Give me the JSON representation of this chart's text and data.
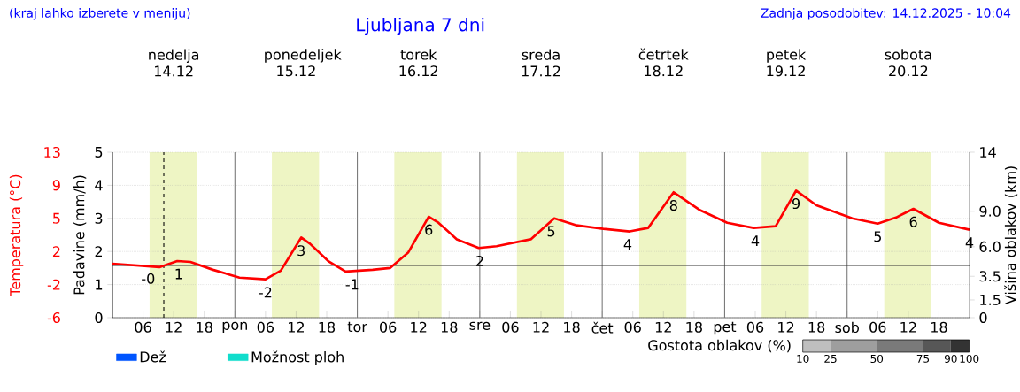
{
  "chart_data": {
    "type": "line",
    "title": "Ljubljana 7 dni",
    "annotations": [
      "(kraj lahko izberete v meniju)",
      "Zadnja posodobitev: 14.12.2025 - 10:04",
      "nedelja 14.12",
      "ponedeljek 15.12",
      "torek 16.12",
      "sreda 17.12",
      "četrtek 18.12",
      "petek 19.12",
      "sobota 20.12",
      {
        "text": "-0",
        "x": "2025-12-14T07:00",
        "y": 0.0
      },
      {
        "text": "1",
        "x": "2025-12-14T13:00",
        "y": 0.5
      },
      {
        "text": "-2",
        "x": "2025-12-15T06:00",
        "y": -1.6
      },
      {
        "text": "3",
        "x": "2025-12-15T13:00",
        "y": 3.2
      },
      {
        "text": "-1",
        "x": "2025-12-15T23:00",
        "y": -0.7
      },
      {
        "text": "6",
        "x": "2025-12-16T14:00",
        "y": 5.6
      },
      {
        "text": "2",
        "x": "2025-12-17T00:00",
        "y": 2.0
      },
      {
        "text": "5",
        "x": "2025-12-17T14:00",
        "y": 5.4
      },
      {
        "text": "4",
        "x": "2025-12-18T05:00",
        "y": 3.9
      },
      {
        "text": "8",
        "x": "2025-12-18T14:00",
        "y": 8.4
      },
      {
        "text": "4",
        "x": "2025-12-19T06:00",
        "y": 4.3
      },
      {
        "text": "9",
        "x": "2025-12-19T14:00",
        "y": 8.6
      },
      {
        "text": "5",
        "x": "2025-12-20T06:00",
        "y": 4.8
      },
      {
        "text": "6",
        "x": "2025-12-20T13:00",
        "y": 6.5
      },
      {
        "text": "4",
        "x": "2025-12-21T00:00",
        "y": 4.1
      }
    ],
    "ylabel": "Temperatura (°C)",
    "y2label": "Padavine (mm/h)",
    "y3label": "Višina oblakov (km)",
    "xlim": [
      "2025-12-14T00:00",
      "2025-12-21T00:00"
    ],
    "xticks": [
      {
        "value": "2025-12-14T06:00",
        "label": "06"
      },
      {
        "value": "2025-12-14T12:00",
        "label": "12"
      },
      {
        "value": "2025-12-14T18:00",
        "label": "18"
      },
      {
        "value": "2025-12-15T00:00",
        "label": "pon"
      },
      {
        "value": "2025-12-15T06:00",
        "label": "06"
      },
      {
        "value": "2025-12-15T12:00",
        "label": "12"
      },
      {
        "value": "2025-12-15T18:00",
        "label": "18"
      },
      {
        "value": "2025-12-16T00:00",
        "label": "tor"
      },
      {
        "value": "2025-12-16T06:00",
        "label": "06"
      },
      {
        "value": "2025-12-16T12:00",
        "label": "12"
      },
      {
        "value": "2025-12-16T18:00",
        "label": "18"
      },
      {
        "value": "2025-12-17T00:00",
        "label": "sre"
      },
      {
        "value": "2025-12-17T06:00",
        "label": "06"
      },
      {
        "value": "2025-12-17T12:00",
        "label": "12"
      },
      {
        "value": "2025-12-17T18:00",
        "label": "18"
      },
      {
        "value": "2025-12-18T00:00",
        "label": "čet"
      },
      {
        "value": "2025-12-18T06:00",
        "label": "06"
      },
      {
        "value": "2025-12-18T12:00",
        "label": "12"
      },
      {
        "value": "2025-12-18T18:00",
        "label": "18"
      },
      {
        "value": "2025-12-19T00:00",
        "label": "pet"
      },
      {
        "value": "2025-12-19T06:00",
        "label": "06"
      },
      {
        "value": "2025-12-19T12:00",
        "label": "12"
      },
      {
        "value": "2025-12-19T18:00",
        "label": "18"
      },
      {
        "value": "2025-12-20T00:00",
        "label": "sob"
      },
      {
        "value": "2025-12-20T06:00",
        "label": "06"
      },
      {
        "value": "2025-12-20T12:00",
        "label": "12"
      },
      {
        "value": "2025-12-20T18:00",
        "label": "18"
      }
    ],
    "ylim": [
      -6,
      13
    ],
    "yticks": [
      {
        "value": -6,
        "label": "-6"
      },
      {
        "value": -2.2,
        "label": "-2"
      },
      {
        "value": 1.6,
        "label": "2"
      },
      {
        "value": 5.4,
        "label": "5"
      },
      {
        "value": 9.2,
        "label": "9"
      },
      {
        "value": 13,
        "label": "13"
      }
    ],
    "y2lim": [
      0,
      5
    ],
    "y2ticks": [
      0,
      1,
      2,
      3,
      4,
      5
    ],
    "y3lim": [
      0,
      14
    ],
    "y3ticks": [
      0,
      1.5,
      3.5,
      {
        "value": 6,
        "label": "6.0"
      },
      {
        "value": 9,
        "label": "9.0"
      },
      14
    ],
    "grid": "y",
    "legend": "bottom",
    "clabel": "Gostota oblakov (%)",
    "clim": [
      10,
      100
    ],
    "cticks": [
      10,
      25,
      50,
      75,
      90,
      100
    ],
    "bands": [
      {
        "axis": "x",
        "from": "2025-12-14T07:15",
        "to": "2025-12-14T16:30",
        "color": "#eef5c4"
      },
      {
        "axis": "x",
        "from": "2025-12-15T07:15",
        "to": "2025-12-15T16:30",
        "color": "#eef5c4"
      },
      {
        "axis": "x",
        "from": "2025-12-16T07:15",
        "to": "2025-12-16T16:30",
        "color": "#eef5c4"
      },
      {
        "axis": "x",
        "from": "2025-12-17T07:15",
        "to": "2025-12-17T16:30",
        "color": "#eef5c4"
      },
      {
        "axis": "x",
        "from": "2025-12-18T07:15",
        "to": "2025-12-18T16:30",
        "color": "#eef5c4"
      },
      {
        "axis": "x",
        "from": "2025-12-19T07:15",
        "to": "2025-12-19T16:30",
        "color": "#eef5c4"
      },
      {
        "axis": "x",
        "from": "2025-12-20T07:15",
        "to": "2025-12-20T16:30",
        "color": "#eef5c4"
      }
    ],
    "ref_lines": [
      {
        "axis": "x",
        "value": "2025-12-15T00:00",
        "color": "#777777"
      },
      {
        "axis": "x",
        "value": "2025-12-16T00:00",
        "color": "#777777"
      },
      {
        "axis": "x",
        "value": "2025-12-17T00:00",
        "color": "#777777"
      },
      {
        "axis": "x",
        "value": "2025-12-18T00:00",
        "color": "#777777"
      },
      {
        "axis": "x",
        "value": "2025-12-19T00:00",
        "color": "#777777"
      },
      {
        "axis": "x",
        "value": "2025-12-20T00:00",
        "color": "#777777"
      },
      {
        "axis": "x",
        "value": "2025-12-14T10:04",
        "color": "#000000",
        "line_style": "dashed"
      },
      {
        "axis": "y",
        "value": 0,
        "color": "#333333"
      }
    ],
    "series": [
      {
        "color": "#ff0000",
        "x": [
          "2025-12-14T00:00",
          "2025-12-14T09:12",
          "2025-12-14T12:42",
          "2025-12-14T15:18",
          "2025-12-14T19:42",
          "2025-12-15T00:54",
          "2025-12-15T06:00",
          "2025-12-15T09:00",
          "2025-12-15T13:00",
          "2025-12-15T14:42",
          "2025-12-15T18:18",
          "2025-12-15T21:42",
          "2025-12-16T03:00",
          "2025-12-16T06:24",
          "2025-12-16T10:00",
          "2025-12-16T14:00",
          "2025-12-16T15:54",
          "2025-12-16T19:30",
          "2025-12-16T23:48",
          "2025-12-17T03:18",
          "2025-12-17T10:00",
          "2025-12-17T14:36",
          "2025-12-17T19:00",
          "2025-12-18T00:12",
          "2025-12-18T05:24",
          "2025-12-18T09:00",
          "2025-12-18T14:00",
          "2025-12-18T19:00",
          "2025-12-19T00:30",
          "2025-12-19T05:42",
          "2025-12-19T10:00",
          "2025-12-19T14:00",
          "2025-12-19T18:00",
          "2025-12-20T01:00",
          "2025-12-20T06:00",
          "2025-12-20T09:36",
          "2025-12-20T13:00",
          "2025-12-20T18:00",
          "2025-12-21T00:00"
        ],
        "values": [
          0.2,
          -0.2,
          0.5,
          0.4,
          -0.5,
          -1.4,
          -1.6,
          -0.6,
          3.2,
          2.5,
          0.5,
          -0.7,
          -0.5,
          -0.3,
          1.5,
          5.6,
          4.9,
          3.0,
          2.0,
          2.2,
          3.0,
          5.4,
          4.6,
          4.2,
          3.9,
          4.3,
          8.4,
          6.4,
          4.9,
          4.3,
          4.5,
          8.6,
          6.9,
          5.4,
          4.8,
          5.5,
          6.5,
          4.9,
          4.1
        ]
      },
      {
        "type": "bar",
        "name": "Dež",
        "color": "#0055ff"
      },
      {
        "type": "bar",
        "name": "Možnost ploh",
        "color": "#11ddcc"
      }
    ]
  }
}
